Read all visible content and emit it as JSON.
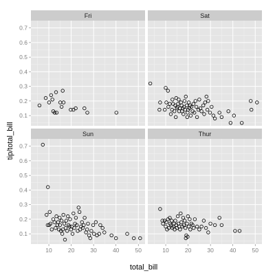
{
  "chart_data": {
    "type": "scatter",
    "xlabel": "total_bill",
    "ylabel": "tip/total_bill",
    "xlim": [
      2,
      53
    ],
    "ylim": [
      0.03,
      0.75
    ],
    "x_ticks": [
      10,
      20,
      30,
      40,
      50
    ],
    "y_ticks": [
      0.1,
      0.2,
      0.3,
      0.4,
      0.5,
      0.6,
      0.7
    ],
    "grid": true,
    "colors": {
      "panel_bg": "#e5e5e5",
      "grid_major": "#ffffff",
      "grid_minor": "#f2f2f2",
      "strip_bg": "#cccccc",
      "point_stroke": "#000000"
    },
    "panels": [
      {
        "label": "Fri",
        "points": [
          [
            5.8,
            0.17
          ],
          [
            8.6,
            0.22
          ],
          [
            10.1,
            0.19
          ],
          [
            11.6,
            0.21
          ],
          [
            12.0,
            0.13
          ],
          [
            12.6,
            0.12
          ],
          [
            13.2,
            0.26
          ],
          [
            15.1,
            0.19
          ],
          [
            15.7,
            0.16
          ],
          [
            16.2,
            0.27
          ],
          [
            16.6,
            0.19
          ],
          [
            19.8,
            0.14
          ],
          [
            21.0,
            0.14
          ],
          [
            22.0,
            0.15
          ],
          [
            25.9,
            0.15
          ],
          [
            27.2,
            0.12
          ],
          [
            40.2,
            0.12
          ],
          [
            11.0,
            0.24
          ],
          [
            13.5,
            0.12
          ]
        ]
      },
      {
        "label": "Sat",
        "points": [
          [
            3.1,
            0.32
          ],
          [
            7.2,
            0.14
          ],
          [
            7.5,
            0.19
          ],
          [
            9.6,
            0.14
          ],
          [
            10.0,
            0.29
          ],
          [
            10.3,
            0.19
          ],
          [
            11.0,
            0.27
          ],
          [
            11.2,
            0.16
          ],
          [
            11.8,
            0.18
          ],
          [
            12.3,
            0.11
          ],
          [
            12.8,
            0.14
          ],
          [
            13.0,
            0.21
          ],
          [
            13.3,
            0.18
          ],
          [
            13.9,
            0.13
          ],
          [
            14.3,
            0.17
          ],
          [
            14.7,
            0.22
          ],
          [
            15.0,
            0.15
          ],
          [
            15.2,
            0.16
          ],
          [
            15.5,
            0.18
          ],
          [
            15.8,
            0.21
          ],
          [
            16.0,
            0.13
          ],
          [
            16.4,
            0.15
          ],
          [
            16.8,
            0.19
          ],
          [
            17.1,
            0.17
          ],
          [
            17.3,
            0.13
          ],
          [
            17.6,
            0.15
          ],
          [
            17.9,
            0.11
          ],
          [
            18.2,
            0.16
          ],
          [
            18.4,
            0.2
          ],
          [
            18.7,
            0.14
          ],
          [
            19.0,
            0.23
          ],
          [
            19.4,
            0.17
          ],
          [
            19.8,
            0.12
          ],
          [
            20.0,
            0.14
          ],
          [
            20.3,
            0.19
          ],
          [
            20.6,
            0.15
          ],
          [
            20.9,
            0.17
          ],
          [
            21.2,
            0.1
          ],
          [
            21.5,
            0.16
          ],
          [
            22.0,
            0.13
          ],
          [
            22.4,
            0.18
          ],
          [
            22.8,
            0.12
          ],
          [
            23.3,
            0.2
          ],
          [
            23.7,
            0.16
          ],
          [
            24.0,
            0.09
          ],
          [
            24.6,
            0.14
          ],
          [
            25.0,
            0.21
          ],
          [
            25.5,
            0.15
          ],
          [
            26.0,
            0.13
          ],
          [
            26.8,
            0.17
          ],
          [
            27.2,
            0.11
          ],
          [
            27.6,
            0.19
          ],
          [
            28.2,
            0.23
          ],
          [
            28.6,
            0.14
          ],
          [
            29.0,
            0.2
          ],
          [
            29.8,
            0.12
          ],
          [
            30.5,
            0.16
          ],
          [
            31.3,
            0.1
          ],
          [
            32.0,
            0.08
          ],
          [
            34.0,
            0.12
          ],
          [
            35.0,
            0.09
          ],
          [
            38.0,
            0.13
          ],
          [
            39.0,
            0.05
          ],
          [
            40.5,
            0.1
          ],
          [
            44.0,
            0.05
          ],
          [
            48.0,
            0.2
          ],
          [
            48.3,
            0.14
          ],
          [
            50.8,
            0.19
          ],
          [
            14.5,
            0.09
          ],
          [
            19.6,
            0.09
          ]
        ]
      },
      {
        "label": "Sun",
        "points": [
          [
            7.3,
            0.71
          ],
          [
            9.6,
            0.42
          ],
          [
            9.0,
            0.23
          ],
          [
            9.5,
            0.16
          ],
          [
            10.2,
            0.16
          ],
          [
            10.4,
            0.25
          ],
          [
            10.7,
            0.17
          ],
          [
            11.3,
            0.13
          ],
          [
            12.0,
            0.2
          ],
          [
            12.5,
            0.18
          ],
          [
            13.0,
            0.14
          ],
          [
            13.4,
            0.22
          ],
          [
            13.8,
            0.16
          ],
          [
            14.1,
            0.18
          ],
          [
            14.5,
            0.13
          ],
          [
            14.8,
            0.21
          ],
          [
            15.0,
            0.16
          ],
          [
            15.4,
            0.12
          ],
          [
            15.7,
            0.19
          ],
          [
            16.0,
            0.1
          ],
          [
            16.3,
            0.13
          ],
          [
            16.5,
            0.23
          ],
          [
            16.9,
            0.17
          ],
          [
            17.2,
            0.06
          ],
          [
            17.5,
            0.14
          ],
          [
            17.8,
            0.19
          ],
          [
            18.2,
            0.12
          ],
          [
            18.5,
            0.22
          ],
          [
            18.8,
            0.16
          ],
          [
            19.2,
            0.15
          ],
          [
            19.5,
            0.2
          ],
          [
            19.9,
            0.13
          ],
          [
            20.2,
            0.15
          ],
          [
            20.6,
            0.1
          ],
          [
            21.0,
            0.24
          ],
          [
            21.4,
            0.14
          ],
          [
            21.7,
            0.17
          ],
          [
            22.1,
            0.21
          ],
          [
            22.5,
            0.16
          ],
          [
            22.9,
            0.12
          ],
          [
            23.3,
            0.28
          ],
          [
            23.7,
            0.25
          ],
          [
            24.0,
            0.13
          ],
          [
            24.4,
            0.15
          ],
          [
            24.8,
            0.18
          ],
          [
            25.2,
            0.14
          ],
          [
            25.6,
            0.16
          ],
          [
            26.0,
            0.21
          ],
          [
            26.6,
            0.11
          ],
          [
            27.1,
            0.13
          ],
          [
            27.5,
            0.17
          ],
          [
            28.0,
            0.09
          ],
          [
            28.5,
            0.07
          ],
          [
            29.0,
            0.12
          ],
          [
            29.8,
            0.16
          ],
          [
            30.2,
            0.1
          ],
          [
            31.0,
            0.18
          ],
          [
            31.5,
            0.09
          ],
          [
            32.5,
            0.1
          ],
          [
            33.0,
            0.16
          ],
          [
            34.0,
            0.14
          ],
          [
            34.8,
            0.11
          ],
          [
            38.0,
            0.09
          ],
          [
            40.0,
            0.07
          ],
          [
            45.0,
            0.1
          ],
          [
            48.0,
            0.07
          ],
          [
            50.8,
            0.07
          ]
        ]
      },
      {
        "label": "Thur",
        "points": [
          [
            7.5,
            0.27
          ],
          [
            8.5,
            0.19
          ],
          [
            8.8,
            0.17
          ],
          [
            9.5,
            0.19
          ],
          [
            10.0,
            0.15
          ],
          [
            10.3,
            0.18
          ],
          [
            10.6,
            0.13
          ],
          [
            11.0,
            0.2
          ],
          [
            11.4,
            0.14
          ],
          [
            11.8,
            0.21
          ],
          [
            12.0,
            0.17
          ],
          [
            12.4,
            0.16
          ],
          [
            12.7,
            0.19
          ],
          [
            13.0,
            0.14
          ],
          [
            13.4,
            0.15
          ],
          [
            13.7,
            0.17
          ],
          [
            14.0,
            0.13
          ],
          [
            14.3,
            0.19
          ],
          [
            14.7,
            0.16
          ],
          [
            15.0,
            0.14
          ],
          [
            15.4,
            0.22
          ],
          [
            15.7,
            0.17
          ],
          [
            16.0,
            0.15
          ],
          [
            16.4,
            0.13
          ],
          [
            16.7,
            0.24
          ],
          [
            17.0,
            0.18
          ],
          [
            17.4,
            0.15
          ],
          [
            17.8,
            0.21
          ],
          [
            18.1,
            0.16
          ],
          [
            18.5,
            0.19
          ],
          [
            18.8,
            0.14
          ],
          [
            19.2,
            0.09
          ],
          [
            19.5,
            0.17
          ],
          [
            19.9,
            0.22
          ],
          [
            20.3,
            0.15
          ],
          [
            20.7,
            0.2
          ],
          [
            21.0,
            0.13
          ],
          [
            21.5,
            0.17
          ],
          [
            22.0,
            0.16
          ],
          [
            22.5,
            0.14
          ],
          [
            23.0,
            0.2
          ],
          [
            24.0,
            0.15
          ],
          [
            25.0,
            0.13
          ],
          [
            26.0,
            0.15
          ],
          [
            27.0,
            0.19
          ],
          [
            28.0,
            0.14
          ],
          [
            29.0,
            0.11
          ],
          [
            30.0,
            0.17
          ],
          [
            32.0,
            0.16
          ],
          [
            34.0,
            0.21
          ],
          [
            35.0,
            0.16
          ],
          [
            41.0,
            0.12
          ],
          [
            43.0,
            0.12
          ],
          [
            19.0,
            0.07
          ],
          [
            19.8,
            0.08
          ]
        ]
      }
    ]
  }
}
